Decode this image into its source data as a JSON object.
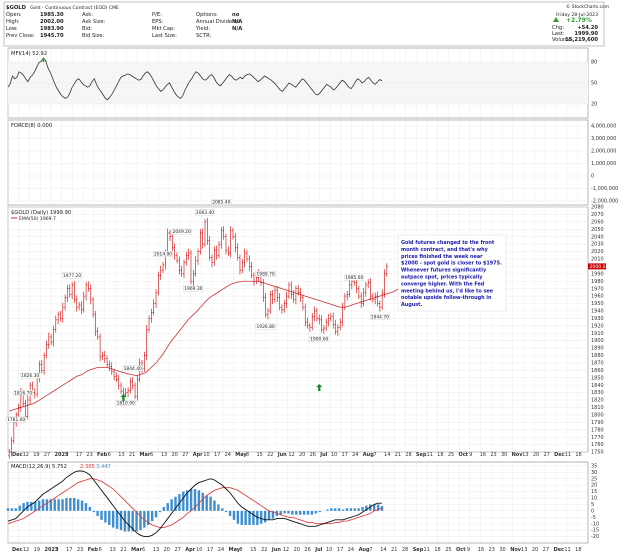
{
  "header": {
    "symbol": "$GOLD",
    "description": "Gold - Continuous Contract (EOD) CME",
    "brand": "© StockCharts.com",
    "date": "Friday   28-Jul-2023",
    "rows": [
      {
        "k1": "Open:",
        "v1": "1985.30",
        "k2": "Ask:",
        "v2": "",
        "k3": "P/E:",
        "v3": "",
        "k4": "Options:",
        "v4": "no"
      },
      {
        "k1": "High:",
        "v1": "2002.00",
        "k2": "Ask Size:",
        "v2": "",
        "k3": "EPS:",
        "v3": "",
        "k4": "Annual Dividend:",
        "v4": "N/A"
      },
      {
        "k1": "Low:",
        "v1": "1983.90",
        "k2": "Bid:",
        "v2": "",
        "k3": "Mkt Cap:",
        "v3": "",
        "k4": "Yield:",
        "v4": "N/A"
      },
      {
        "k1": "Prev Close:",
        "v1": "1945.70",
        "k2": "Bid Size:",
        "v2": "",
        "k3": "Last Size:",
        "v3": "",
        "k4": "SCTR:",
        "v4": ""
      }
    ],
    "pct_change": "+2.79%",
    "right_rows": [
      {
        "k": "Chg:",
        "v": "+54.20"
      },
      {
        "k": "Last:",
        "v": "1999.90"
      },
      {
        "k": "Volume:",
        "v": "15,219,600"
      }
    ]
  },
  "colors": {
    "up": "#2e9c3a",
    "price": "#cc0000",
    "ema": "#cc3333",
    "mfi": "#333333",
    "macd": "#111111",
    "signal": "#dd3333",
    "hist": "#3f8fd0",
    "arrow": "#1e8a2c",
    "note": "#1a1aaa"
  },
  "chart_data": [
    {
      "type": "line",
      "title": "MFI(14) 52.92",
      "y_ticks": [
        80,
        50,
        20
      ],
      "ylim": [
        0,
        100
      ],
      "values": [
        44,
        49,
        60,
        56,
        58,
        66,
        64,
        61,
        56,
        52,
        58,
        61,
        66,
        73,
        79,
        81,
        86,
        82,
        72,
        66,
        58,
        50,
        43,
        38,
        33,
        30,
        28,
        30,
        36,
        44,
        49,
        54,
        56,
        52,
        48,
        46,
        44,
        46,
        52,
        56,
        48,
        42,
        38,
        33,
        28,
        26,
        30,
        34,
        40,
        46,
        52,
        58,
        60,
        61,
        63,
        62,
        60,
        58,
        56,
        54,
        55,
        60,
        64,
        66,
        63,
        58,
        52,
        46,
        42,
        38,
        40,
        44,
        48,
        50,
        44,
        38,
        33,
        30,
        28,
        32,
        40,
        46,
        52,
        56,
        62,
        66,
        64,
        60,
        56,
        54,
        56,
        60,
        62,
        58,
        52,
        48,
        46,
        50,
        54,
        58,
        62,
        60,
        56,
        54,
        56,
        58,
        56,
        60,
        62,
        63,
        61,
        58,
        55,
        52,
        54,
        57,
        60,
        58,
        56,
        54,
        51,
        48,
        44,
        40,
        38,
        42,
        46,
        50,
        48,
        46,
        44,
        48,
        52,
        56,
        54,
        50,
        46,
        42,
        38,
        34,
        33,
        36,
        40,
        44,
        48,
        46,
        44,
        40,
        42,
        46,
        50,
        54,
        52,
        48,
        44,
        42,
        46,
        52,
        56,
        54,
        50,
        52,
        56,
        58,
        54,
        50,
        48,
        52,
        55,
        53
      ]
    },
    {
      "type": "line",
      "title": "FORCE(8) 0.000",
      "y_ticks": [
        "4,000,000",
        "3,000,000",
        "2,000,000",
        "1,000,000",
        "0",
        "-1,000,000",
        "-2,000,000"
      ],
      "values": []
    },
    {
      "type": "bar",
      "title": "$GOLD (Daily) 1999.90",
      "series_label": "EMA(50) 1969.7",
      "ylim": [
        1750,
        2080
      ],
      "y_ticks": [
        2080,
        2070,
        2060,
        2050,
        2040,
        2030,
        2020,
        2010,
        2000,
        1990,
        1980,
        1970,
        1960,
        1950,
        1940,
        1930,
        1920,
        1910,
        1900,
        1890,
        1880,
        1870,
        1860,
        1850,
        1840,
        1830,
        1820,
        1810,
        1800,
        1790,
        1780,
        1770,
        1760,
        1750
      ],
      "closes": [
        1750,
        1765,
        1790,
        1800,
        1810,
        1830,
        1815,
        1798,
        1820,
        1840,
        1830,
        1828,
        1850,
        1868,
        1860,
        1880,
        1895,
        1905,
        1898,
        1915,
        1928,
        1935,
        1930,
        1945,
        1958,
        1970,
        1962,
        1975,
        1955,
        1945,
        1948,
        1942,
        1960,
        1975,
        1970,
        1955,
        1935,
        1912,
        1905,
        1878,
        1880,
        1876,
        1868,
        1865,
        1858,
        1852,
        1848,
        1840,
        1832,
        1828,
        1830,
        1833,
        1845,
        1840,
        1825,
        1848,
        1870,
        1862,
        1880,
        1915,
        1930,
        1938,
        1950,
        1965,
        1988,
        1995,
        2002,
        2018,
        2045,
        2040,
        2025,
        2015,
        2008,
        1995,
        1990,
        2005,
        2015,
        2018,
        1980,
        1990,
        2008,
        2020,
        2045,
        2030,
        2060,
        2035,
        2012,
        2005,
        2022,
        2015,
        2030,
        2048,
        2040,
        2022,
        2018,
        2048,
        2040,
        2025,
        2012,
        1995,
        2005,
        2018,
        2010,
        2000,
        1988,
        1980,
        1985,
        1990,
        1978,
        1958,
        1935,
        1940,
        1962,
        1955,
        1968,
        1958,
        1945,
        1942,
        1950,
        1960,
        1975,
        1962,
        1955,
        1970,
        1965,
        1958,
        1945,
        1925,
        1920,
        1918,
        1932,
        1940,
        1930,
        1928,
        1915,
        1917,
        1925,
        1930,
        1933,
        1922,
        1912,
        1918,
        1925,
        1945,
        1960,
        1962,
        1975,
        1980,
        1978,
        1970,
        1960,
        1950,
        1965,
        1975,
        1978,
        1960,
        1955,
        1960,
        1950,
        1945,
        1964,
        1990,
        2000
      ],
      "ema50": [
        1805,
        1806,
        1807,
        1808,
        1809,
        1810,
        1811,
        1812,
        1813,
        1814,
        1815,
        1816,
        1818,
        1820,
        1822,
        1824,
        1826,
        1828,
        1830,
        1832,
        1834,
        1836,
        1838,
        1840,
        1842,
        1844,
        1846,
        1848,
        1850,
        1852,
        1853,
        1854,
        1856,
        1858,
        1860,
        1861,
        1862,
        1863,
        1864,
        1864,
        1864,
        1864,
        1864,
        1863,
        1862,
        1861,
        1860,
        1859,
        1858,
        1857,
        1856,
        1855,
        1855,
        1854,
        1853,
        1853,
        1854,
        1855,
        1856,
        1858,
        1861,
        1864,
        1867,
        1870,
        1874,
        1878,
        1882,
        1887,
        1892,
        1897,
        1901,
        1905,
        1909,
        1913,
        1917,
        1921,
        1925,
        1929,
        1932,
        1935,
        1938,
        1941,
        1945,
        1948,
        1952,
        1955,
        1958,
        1960,
        1962,
        1964,
        1966,
        1968,
        1970,
        1972,
        1974,
        1976,
        1977,
        1978,
        1979,
        1979,
        1980,
        1980,
        1980,
        1980,
        1980,
        1980,
        1980,
        1980,
        1979,
        1978,
        1977,
        1976,
        1975,
        1974,
        1973,
        1972,
        1971,
        1970,
        1969,
        1968,
        1967,
        1966,
        1965,
        1964,
        1963,
        1962,
        1961,
        1960,
        1959,
        1958,
        1957,
        1956,
        1955,
        1954,
        1953,
        1952,
        1951,
        1950,
        1949,
        1948,
        1947,
        1946,
        1945,
        1945,
        1945,
        1946,
        1947,
        1948,
        1949,
        1950,
        1951,
        1952,
        1953,
        1954,
        1955,
        1956,
        1957,
        1958,
        1959,
        1960,
        1961,
        1962,
        1963,
        1964,
        1965,
        1966,
        1968,
        1969.7
      ],
      "labels": [
        {
          "i": 3,
          "v": 1800,
          "text": "1781.00",
          "pos": "below"
        },
        {
          "i": 6,
          "v": 1825,
          "text": "1816.70",
          "pos": "above"
        },
        {
          "i": 9,
          "v": 1848,
          "text": "1826.30",
          "pos": "above"
        },
        {
          "i": 27,
          "v": 1983,
          "text": "1977.20",
          "pos": "above"
        },
        {
          "i": 50,
          "v": 1822,
          "text": "1810.90",
          "pos": "below"
        },
        {
          "i": 53,
          "v": 1858,
          "text": "1844.40",
          "pos": "above"
        },
        {
          "i": 66,
          "v": 2012,
          "text": "2014.90",
          "pos": "above"
        },
        {
          "i": 74,
          "v": 2042,
          "text": "2049.20",
          "pos": "above"
        },
        {
          "i": 79,
          "v": 1976,
          "text": "1969.30",
          "pos": "below"
        },
        {
          "i": 84,
          "v": 2068,
          "text": "2063.40",
          "pos": "above"
        },
        {
          "i": 91,
          "v": 2082,
          "text": "2085.40",
          "pos": "above"
        },
        {
          "i": 110,
          "v": 1985,
          "text": "1989.70",
          "pos": "above"
        },
        {
          "i": 110,
          "v": 1925,
          "text": "1926.80",
          "pos": "below"
        },
        {
          "i": 133,
          "v": 1908,
          "text": "1900.60",
          "pos": "below"
        },
        {
          "i": 148,
          "v": 1980,
          "text": "1985.00",
          "pos": "above"
        },
        {
          "i": 159,
          "v": 1938,
          "text": "1944.70",
          "pos": "below"
        }
      ],
      "arrows": [
        49,
        133
      ],
      "annotation": [
        "Gold futures changed to the front",
        "month contract, and that's why",
        "prices finished the week near",
        "$2000 - spot gold is closer to $1975.",
        "Whenever futures significantly",
        "outpace spot, prices typically",
        "converge higher. With the Fed",
        "meeting behind us, I'd like to see",
        "notable upside follow-through in",
        "August."
      ]
    },
    {
      "type": "line",
      "title": "MACD(12,26,9) 5.752",
      "signal_label": "2.305",
      "hist_label": "3.447",
      "ylim": [
        -25,
        38
      ],
      "y_ticks": [
        35,
        30,
        25,
        20,
        15,
        10,
        5,
        0,
        -5,
        -10,
        -15,
        -20
      ],
      "macd": [
        -8,
        -7,
        -6,
        -3,
        0,
        3,
        5,
        7,
        10,
        13,
        15,
        17,
        19,
        21,
        23,
        26,
        28,
        30,
        31,
        31,
        30,
        28,
        24,
        20,
        16,
        12,
        8,
        4,
        0,
        -4,
        -8,
        -11,
        -14,
        -17,
        -19,
        -20,
        -20,
        -19,
        -17,
        -14,
        -10,
        -6,
        -2,
        2,
        6,
        10,
        14,
        17,
        20,
        22,
        23,
        24,
        25,
        24,
        22,
        20,
        17,
        14,
        10,
        6,
        3,
        1,
        -1,
        -3,
        -5,
        -6,
        -7,
        -7,
        -7,
        -6,
        -6,
        -6,
        -7,
        -8,
        -9,
        -10,
        -11,
        -12,
        -12,
        -12,
        -11,
        -10,
        -9,
        -8,
        -7,
        -7,
        -7,
        -6,
        -5,
        -4,
        -3,
        -1,
        1,
        3,
        5,
        6,
        6
      ],
      "signal": [
        -10,
        -9,
        -8,
        -7,
        -6,
        -4,
        -2,
        0,
        2,
        4,
        6,
        8,
        10,
        12,
        14,
        16,
        18,
        20,
        22,
        23,
        24,
        25,
        25,
        24,
        23,
        21,
        19,
        17,
        14,
        11,
        8,
        5,
        2,
        -1,
        -4,
        -7,
        -9,
        -11,
        -12,
        -13,
        -13,
        -12,
        -11,
        -9,
        -7,
        -5,
        -2,
        0,
        3,
        6,
        9,
        12,
        14,
        16,
        17,
        18,
        18,
        18,
        17,
        16,
        14,
        12,
        10,
        8,
        6,
        4,
        2,
        0,
        -1,
        -2,
        -3,
        -4,
        -5,
        -5,
        -6,
        -7,
        -8,
        -9,
        -9,
        -10,
        -10,
        -10,
        -10,
        -10,
        -9,
        -9,
        -8,
        -8,
        -7,
        -6,
        -5,
        -4,
        -3,
        -2,
        0,
        1,
        2.3
      ]
    }
  ],
  "x_axis": {
    "top_labels": [
      "Dec",
      "12",
      "19",
      "27",
      "2023",
      "9",
      "17",
      "23",
      "Feb",
      "6",
      "13",
      "21",
      "Mar",
      "6",
      "13",
      "20",
      "27",
      "Apr",
      "10",
      "17",
      "24",
      "May",
      "8",
      "15",
      "22",
      "Jun",
      "12",
      "20",
      "26",
      "Jul",
      "10",
      "17",
      "24",
      "Aug",
      "7",
      "14",
      "21",
      "28",
      "Sep",
      "11",
      "18",
      "25",
      "Oct",
      "9",
      "16",
      "23",
      "30",
      "Nov",
      "13",
      "20",
      "27",
      "Dec",
      "11",
      "18"
    ],
    "bottom_labels": [
      "Dec",
      "12",
      "19",
      "2023",
      "9",
      "17",
      "23",
      "Feb",
      "6",
      "13",
      "21",
      "Mar",
      "6",
      "13",
      "20",
      "27",
      "Apr",
      "10",
      "17",
      "24",
      "May",
      "8",
      "15",
      "22",
      "Jun",
      "12",
      "20",
      "26",
      "Jul",
      "10",
      "17",
      "24",
      "Aug",
      "7",
      "14",
      "21",
      "28",
      "Sep",
      "11",
      "18",
      "25",
      "Oct",
      "9",
      "16",
      "23",
      "30",
      "Nov",
      "13",
      "20",
      "27",
      "Dec",
      "11",
      "18"
    ]
  }
}
